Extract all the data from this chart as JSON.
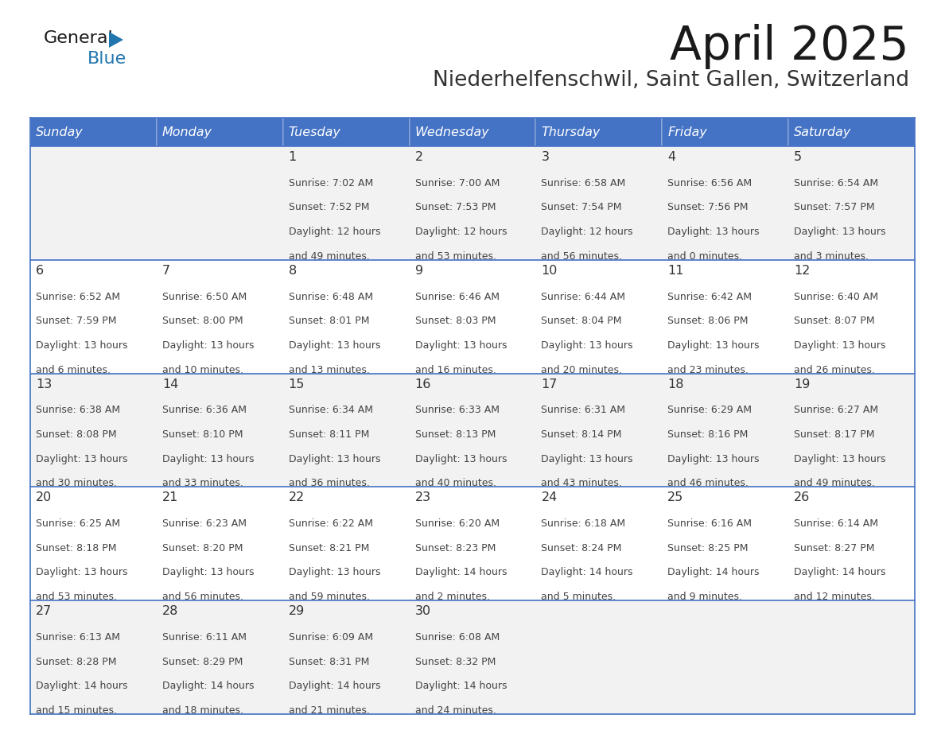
{
  "title": "April 2025",
  "subtitle": "Niederhelfenschwil, Saint Gallen, Switzerland",
  "header_bg": "#4472C4",
  "header_text_color": "#FFFFFF",
  "days_of_week": [
    "Sunday",
    "Monday",
    "Tuesday",
    "Wednesday",
    "Thursday",
    "Friday",
    "Saturday"
  ],
  "row1_bg": "#F2F2F2",
  "row2_bg": "#FFFFFF",
  "cell_border_color": "#4472C4",
  "date_text_color": "#333333",
  "info_text_color": "#444444",
  "logo_black": "#1a1a1a",
  "logo_blue": "#2176AE",
  "logo_triangle": "#2176AE",
  "calendar": [
    [
      {
        "day": "",
        "sunrise": "",
        "sunset": "",
        "daylight": ""
      },
      {
        "day": "",
        "sunrise": "",
        "sunset": "",
        "daylight": ""
      },
      {
        "day": "1",
        "sunrise": "Sunrise: 7:02 AM",
        "sunset": "Sunset: 7:52 PM",
        "daylight": "Daylight: 12 hours\nand 49 minutes."
      },
      {
        "day": "2",
        "sunrise": "Sunrise: 7:00 AM",
        "sunset": "Sunset: 7:53 PM",
        "daylight": "Daylight: 12 hours\nand 53 minutes."
      },
      {
        "day": "3",
        "sunrise": "Sunrise: 6:58 AM",
        "sunset": "Sunset: 7:54 PM",
        "daylight": "Daylight: 12 hours\nand 56 minutes."
      },
      {
        "day": "4",
        "sunrise": "Sunrise: 6:56 AM",
        "sunset": "Sunset: 7:56 PM",
        "daylight": "Daylight: 13 hours\nand 0 minutes."
      },
      {
        "day": "5",
        "sunrise": "Sunrise: 6:54 AM",
        "sunset": "Sunset: 7:57 PM",
        "daylight": "Daylight: 13 hours\nand 3 minutes."
      }
    ],
    [
      {
        "day": "6",
        "sunrise": "Sunrise: 6:52 AM",
        "sunset": "Sunset: 7:59 PM",
        "daylight": "Daylight: 13 hours\nand 6 minutes."
      },
      {
        "day": "7",
        "sunrise": "Sunrise: 6:50 AM",
        "sunset": "Sunset: 8:00 PM",
        "daylight": "Daylight: 13 hours\nand 10 minutes."
      },
      {
        "day": "8",
        "sunrise": "Sunrise: 6:48 AM",
        "sunset": "Sunset: 8:01 PM",
        "daylight": "Daylight: 13 hours\nand 13 minutes."
      },
      {
        "day": "9",
        "sunrise": "Sunrise: 6:46 AM",
        "sunset": "Sunset: 8:03 PM",
        "daylight": "Daylight: 13 hours\nand 16 minutes."
      },
      {
        "day": "10",
        "sunrise": "Sunrise: 6:44 AM",
        "sunset": "Sunset: 8:04 PM",
        "daylight": "Daylight: 13 hours\nand 20 minutes."
      },
      {
        "day": "11",
        "sunrise": "Sunrise: 6:42 AM",
        "sunset": "Sunset: 8:06 PM",
        "daylight": "Daylight: 13 hours\nand 23 minutes."
      },
      {
        "day": "12",
        "sunrise": "Sunrise: 6:40 AM",
        "sunset": "Sunset: 8:07 PM",
        "daylight": "Daylight: 13 hours\nand 26 minutes."
      }
    ],
    [
      {
        "day": "13",
        "sunrise": "Sunrise: 6:38 AM",
        "sunset": "Sunset: 8:08 PM",
        "daylight": "Daylight: 13 hours\nand 30 minutes."
      },
      {
        "day": "14",
        "sunrise": "Sunrise: 6:36 AM",
        "sunset": "Sunset: 8:10 PM",
        "daylight": "Daylight: 13 hours\nand 33 minutes."
      },
      {
        "day": "15",
        "sunrise": "Sunrise: 6:34 AM",
        "sunset": "Sunset: 8:11 PM",
        "daylight": "Daylight: 13 hours\nand 36 minutes."
      },
      {
        "day": "16",
        "sunrise": "Sunrise: 6:33 AM",
        "sunset": "Sunset: 8:13 PM",
        "daylight": "Daylight: 13 hours\nand 40 minutes."
      },
      {
        "day": "17",
        "sunrise": "Sunrise: 6:31 AM",
        "sunset": "Sunset: 8:14 PM",
        "daylight": "Daylight: 13 hours\nand 43 minutes."
      },
      {
        "day": "18",
        "sunrise": "Sunrise: 6:29 AM",
        "sunset": "Sunset: 8:16 PM",
        "daylight": "Daylight: 13 hours\nand 46 minutes."
      },
      {
        "day": "19",
        "sunrise": "Sunrise: 6:27 AM",
        "sunset": "Sunset: 8:17 PM",
        "daylight": "Daylight: 13 hours\nand 49 minutes."
      }
    ],
    [
      {
        "day": "20",
        "sunrise": "Sunrise: 6:25 AM",
        "sunset": "Sunset: 8:18 PM",
        "daylight": "Daylight: 13 hours\nand 53 minutes."
      },
      {
        "day": "21",
        "sunrise": "Sunrise: 6:23 AM",
        "sunset": "Sunset: 8:20 PM",
        "daylight": "Daylight: 13 hours\nand 56 minutes."
      },
      {
        "day": "22",
        "sunrise": "Sunrise: 6:22 AM",
        "sunset": "Sunset: 8:21 PM",
        "daylight": "Daylight: 13 hours\nand 59 minutes."
      },
      {
        "day": "23",
        "sunrise": "Sunrise: 6:20 AM",
        "sunset": "Sunset: 8:23 PM",
        "daylight": "Daylight: 14 hours\nand 2 minutes."
      },
      {
        "day": "24",
        "sunrise": "Sunrise: 6:18 AM",
        "sunset": "Sunset: 8:24 PM",
        "daylight": "Daylight: 14 hours\nand 5 minutes."
      },
      {
        "day": "25",
        "sunrise": "Sunrise: 6:16 AM",
        "sunset": "Sunset: 8:25 PM",
        "daylight": "Daylight: 14 hours\nand 9 minutes."
      },
      {
        "day": "26",
        "sunrise": "Sunrise: 6:14 AM",
        "sunset": "Sunset: 8:27 PM",
        "daylight": "Daylight: 14 hours\nand 12 minutes."
      }
    ],
    [
      {
        "day": "27",
        "sunrise": "Sunrise: 6:13 AM",
        "sunset": "Sunset: 8:28 PM",
        "daylight": "Daylight: 14 hours\nand 15 minutes."
      },
      {
        "day": "28",
        "sunrise": "Sunrise: 6:11 AM",
        "sunset": "Sunset: 8:29 PM",
        "daylight": "Daylight: 14 hours\nand 18 minutes."
      },
      {
        "day": "29",
        "sunrise": "Sunrise: 6:09 AM",
        "sunset": "Sunset: 8:31 PM",
        "daylight": "Daylight: 14 hours\nand 21 minutes."
      },
      {
        "day": "30",
        "sunrise": "Sunrise: 6:08 AM",
        "sunset": "Sunset: 8:32 PM",
        "daylight": "Daylight: 14 hours\nand 24 minutes."
      },
      {
        "day": "",
        "sunrise": "",
        "sunset": "",
        "daylight": ""
      },
      {
        "day": "",
        "sunrise": "",
        "sunset": "",
        "daylight": ""
      },
      {
        "day": "",
        "sunrise": "",
        "sunset": "",
        "daylight": ""
      }
    ]
  ]
}
